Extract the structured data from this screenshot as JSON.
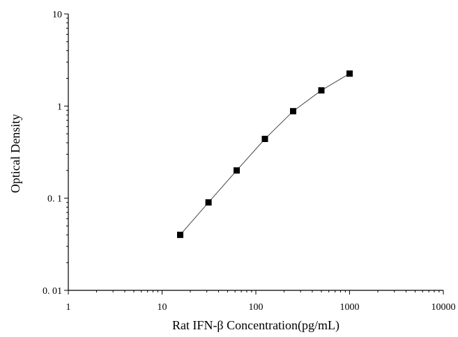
{
  "chart_data": {
    "type": "scatter",
    "title": "",
    "xlabel": "Rat IFN-β Concentration(pg/mL)",
    "ylabel": "Optical Density",
    "x_scale": "log",
    "y_scale": "log",
    "xlim": [
      1,
      10000
    ],
    "ylim": [
      0.01,
      10
    ],
    "x_ticks": [
      "1",
      "10",
      "100",
      "1000",
      "10000"
    ],
    "y_ticks": [
      "0. 01",
      "0. 1",
      "1",
      "10"
    ],
    "grid": false,
    "series": [
      {
        "points": [
          {
            "x": 15.6,
            "y": 0.04
          },
          {
            "x": 31.25,
            "y": 0.09
          },
          {
            "x": 62.5,
            "y": 0.2
          },
          {
            "x": 125,
            "y": 0.44
          },
          {
            "x": 250,
            "y": 0.88
          },
          {
            "x": 500,
            "y": 1.48
          },
          {
            "x": 1000,
            "y": 2.25
          }
        ],
        "fit_line": true,
        "marker": "square",
        "line_color": "#444444",
        "marker_color": "#000000"
      }
    ]
  }
}
